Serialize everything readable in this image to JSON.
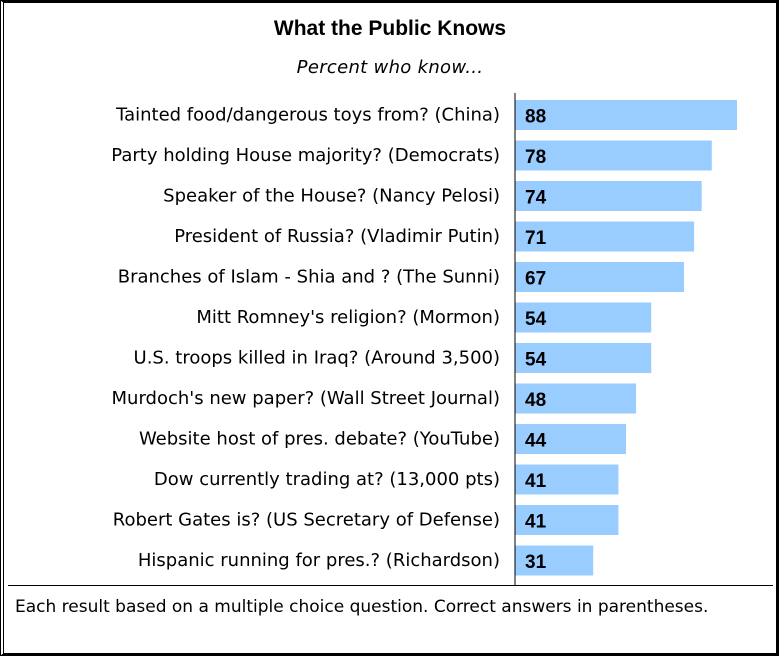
{
  "chart_data": {
    "type": "bar",
    "orientation": "horizontal",
    "title": "What the Public Knows",
    "subtitle": "Percent who know...",
    "categories": [
      "Tainted food/dangerous toys from? (China)",
      "Party holding House majority? (Democrats)",
      "Speaker of the House? (Nancy Pelosi)",
      "President of Russia? (Vladimir Putin)",
      "Branches of Islam - Shia and ? (The Sunni)",
      "Mitt Romney's religion? (Mormon)",
      "U.S. troops killed in Iraq? (Around 3,500)",
      "Murdoch's new paper? (Wall Street Journal)",
      "Website host of pres. debate? (YouTube)",
      "Dow currently trading at? (13,000 pts)",
      "Robert Gates is? (US Secretary of Defense)",
      "Hispanic running for pres.? (Richardson)"
    ],
    "values": [
      88,
      78,
      74,
      71,
      67,
      54,
      54,
      48,
      44,
      41,
      41,
      31
    ],
    "xlim": [
      0,
      100
    ],
    "bar_color": "#99ccff",
    "data_labels": true,
    "grid": false,
    "legend": "none"
  },
  "footnote": "Each result based on a multiple choice question.  Correct answers in parentheses."
}
